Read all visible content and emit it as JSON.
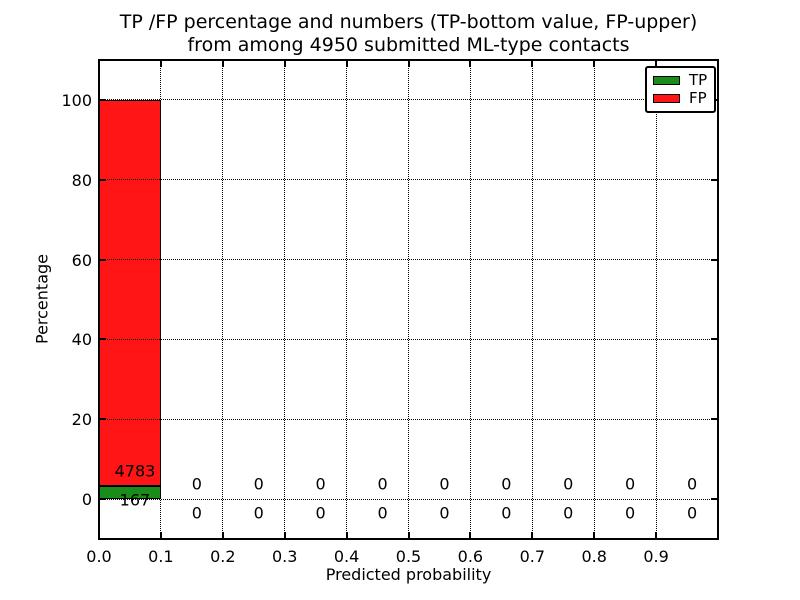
{
  "figure": {
    "title_line1": "TP /FP percentage and numbers (TP-bottom value, FP-upper)",
    "title_line2": "from among 4950 submitted ML-type contacts",
    "background": "#ffffff",
    "text_color": "#000000"
  },
  "chart_data": {
    "type": "bar",
    "stacked": true,
    "title": "TP /FP percentage and numbers (TP-bottom value, FP-upper)\nfrom among 4950 submitted ML-type contacts",
    "xlabel": "Predicted probability",
    "ylabel": "Percentage",
    "xlim": [
      0.0,
      1.0
    ],
    "ylim": [
      -10,
      110
    ],
    "xtick_values": [
      0.0,
      0.1,
      0.2,
      0.3,
      0.4,
      0.5,
      0.6,
      0.7,
      0.8,
      0.9
    ],
    "xtick_labels": [
      "0.0",
      "0.1",
      "0.2",
      "0.3",
      "0.4",
      "0.5",
      "0.6",
      "0.7",
      "0.8",
      "0.9"
    ],
    "ytick_values": [
      0,
      20,
      40,
      60,
      80,
      100
    ],
    "ytick_labels": [
      "0",
      "20",
      "40",
      "60",
      "80",
      "100"
    ],
    "grid": "dotted",
    "total_contacts": 4950,
    "bin_width": 0.1,
    "bin_starts": [
      0.0,
      0.1,
      0.2,
      0.3,
      0.4,
      0.5,
      0.6,
      0.7,
      0.8,
      0.9
    ],
    "series": [
      {
        "name": "TP",
        "color": "#1a8c1a",
        "counts": [
          167,
          0,
          0,
          0,
          0,
          0,
          0,
          0,
          0,
          0
        ]
      },
      {
        "name": "FP",
        "color": "#ff1515",
        "counts": [
          4783,
          0,
          0,
          0,
          0,
          0,
          0,
          0,
          0,
          0
        ]
      }
    ],
    "legend": {
      "position": "upper right",
      "items": [
        "TP",
        "FP"
      ]
    }
  }
}
